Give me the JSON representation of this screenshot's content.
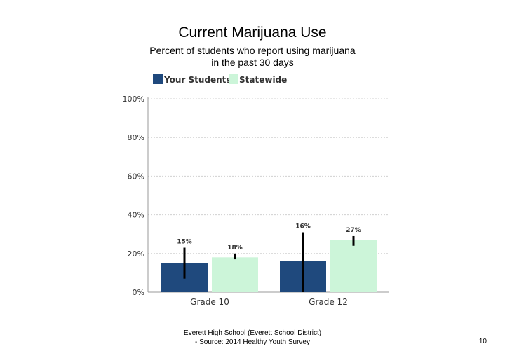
{
  "title": "Current Marijuana Use",
  "subtitle_lines": [
    "Percent of students who report using marijuana",
    "in the past 30 days"
  ],
  "source_lines": [
    "Everett High School (Everett School District)",
    "- Source: 2014 Healthy Youth Survey"
  ],
  "page_number": "10",
  "colors": {
    "your_students": "#1f497d",
    "statewide": "#ccf5d9",
    "error_bar": "#000000",
    "axis": "#999999",
    "grid": "#d0d0d0"
  },
  "chart_data": {
    "type": "bar",
    "categories": [
      "Grade 10",
      "Grade 12"
    ],
    "series": [
      {
        "name": "Your Students",
        "values": [
          15,
          16
        ],
        "data_labels": [
          "15%",
          "16%"
        ],
        "error_low": [
          7,
          0
        ],
        "error_high": [
          23,
          31
        ]
      },
      {
        "name": "Statewide",
        "values": [
          18,
          27
        ],
        "data_labels": [
          "18%",
          "27%"
        ],
        "error_low": [
          17,
          24
        ],
        "error_high": [
          20,
          29
        ]
      }
    ],
    "ylim": [
      0,
      100
    ],
    "yticks": [
      0,
      20,
      40,
      60,
      80,
      100
    ],
    "ytick_labels": [
      "0%",
      "20%",
      "40%",
      "60%",
      "80%",
      "100%"
    ],
    "grid": true,
    "legend_position": "top"
  }
}
